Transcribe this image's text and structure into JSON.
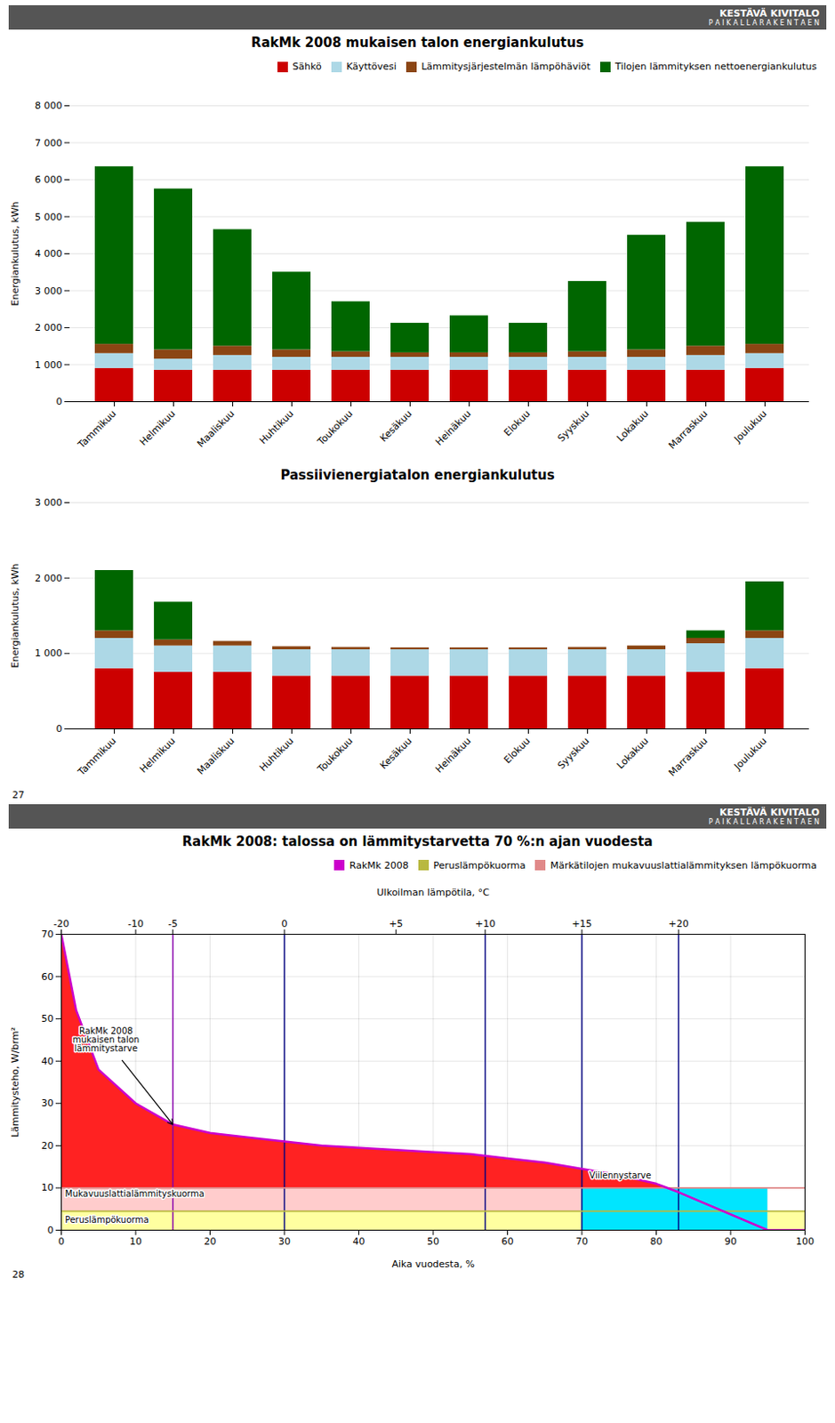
{
  "chart_data": [
    {
      "type": "bar",
      "stacked": true,
      "title": "RakMk 2008 mukaisen talon energiankulutus",
      "y_label": "Energiankulutus, kWh",
      "categories": [
        "Tammikuu",
        "Helmikuu",
        "Maaliskuu",
        "Huhtikuu",
        "Toukokuu",
        "Kesäkuu",
        "Heinäkuu",
        "Elokuu",
        "Syyskuu",
        "Lokakuu",
        "Marraskuu",
        "Joulukuu"
      ],
      "series": [
        {
          "name": "Sähkö",
          "color": "#cc0000",
          "values": [
            900,
            850,
            850,
            850,
            850,
            850,
            850,
            850,
            850,
            850,
            850,
            900
          ]
        },
        {
          "name": "Käyttövesi",
          "color": "#add8e6",
          "values": [
            400,
            300,
            400,
            350,
            350,
            350,
            350,
            350,
            350,
            350,
            400,
            400
          ]
        },
        {
          "name": "Lämmitysjärjestelmän lämpöhäviöt",
          "color": "#8B4513",
          "values": [
            250,
            250,
            250,
            200,
            150,
            120,
            120,
            120,
            150,
            200,
            250,
            250
          ]
        },
        {
          "name": "Tilojen lämmityksen nettoenergiankulutus",
          "color": "#006600",
          "values": [
            4800,
            4350,
            3150,
            2100,
            1350,
            800,
            1000,
            800,
            1900,
            3100,
            3350,
            4800
          ]
        }
      ],
      "ylim": [
        0,
        8000
      ],
      "yticks": [
        0,
        {
          "value": 1000,
          "label": "1 000"
        },
        {
          "value": 2000,
          "label": "2 000"
        },
        {
          "value": 3000,
          "label": "3 000"
        },
        {
          "value": 4000,
          "label": "4 000"
        },
        {
          "value": 5000,
          "label": "5 000"
        },
        {
          "value": 6000,
          "label": "6 000"
        },
        {
          "value": 7000,
          "label": "7 000"
        },
        {
          "value": 8000,
          "label": "8 000"
        }
      ],
      "grid": "y",
      "legend": "upper right",
      "annotations": [
        "KESTÄVÄ KIVITALO",
        "P A I K A L L A R A K E N T A E N"
      ]
    },
    {
      "type": "bar",
      "stacked": true,
      "title": "Passiivienergiatalon energiankulutus",
      "y_label": "Energiankulutus, kWh",
      "categories": [
        "Tammikuu",
        "Helmikuu",
        "Maaliskuu",
        "Huhtikuu",
        "Toukokuu",
        "Kesäkuu",
        "Heinäkuu",
        "Elokuu",
        "Syyskuu",
        "Lokakuu",
        "Marraskuu",
        "Joulukuu"
      ],
      "series": [
        {
          "color": "#cc0000",
          "values": [
            800,
            750,
            750,
            700,
            700,
            700,
            700,
            700,
            700,
            700,
            750,
            800
          ]
        },
        {
          "color": "#add8e6",
          "values": [
            400,
            350,
            350,
            350,
            350,
            350,
            350,
            350,
            350,
            350,
            380,
            400
          ]
        },
        {
          "color": "#8B4513",
          "values": [
            100,
            80,
            60,
            40,
            30,
            25,
            25,
            25,
            30,
            50,
            70,
            100
          ]
        },
        {
          "color": "#006600",
          "values": [
            800,
            500,
            0,
            0,
            0,
            0,
            0,
            0,
            0,
            0,
            100,
            650
          ]
        }
      ],
      "ylim": [
        0,
        3000
      ],
      "yticks": [
        0,
        {
          "value": 1000,
          "label": "1 000"
        },
        {
          "value": 2000,
          "label": "2 000"
        },
        {
          "value": 3000,
          "label": "3 000"
        }
      ],
      "grid": "y",
      "annotations": [
        "27"
      ]
    },
    {
      "type": "line",
      "title": "RakMk 2008: talossa on lämmitystarvetta 70 %:n ajan vuodesta",
      "x_label": "Aika vuodesta, %",
      "y_label": "Lämmitysteho, W/brm²",
      "x2_label": "Ulkoilman lämpötila, °C",
      "xlim": [
        0,
        100
      ],
      "xticks": [
        0,
        10,
        20,
        30,
        40,
        50,
        60,
        70,
        80,
        90,
        100
      ],
      "ylim": [
        0,
        70
      ],
      "yticks": [
        0,
        10,
        20,
        30,
        40,
        50,
        60,
        70
      ],
      "x2lim": [
        0,
        100
      ],
      "x2ticks": [
        {
          "value": 0,
          "label": "-20"
        },
        {
          "value": 10,
          "label": "-10"
        },
        {
          "value": 15,
          "label": "-5"
        },
        {
          "value": 30,
          "label": "0"
        },
        {
          "value": 45,
          "label": "+5"
        },
        {
          "value": 57,
          "label": "+10"
        },
        {
          "value": 70,
          "label": "+15"
        },
        {
          "value": 83,
          "label": "+20"
        }
      ],
      "grid": true,
      "legend": "upper right",
      "series": [
        {
          "type": "area",
          "color": "#ff2222",
          "x": [
            0,
            2,
            5,
            10,
            15,
            20,
            25,
            30,
            35,
            40,
            45,
            50,
            55,
            60,
            65,
            70,
            75,
            80,
            83
          ],
          "values": [
            70,
            52,
            38,
            30,
            25,
            23,
            22,
            21,
            20,
            19.5,
            19,
            18.5,
            18,
            17,
            16,
            14.5,
            13,
            11,
            9
          ],
          "base": 10
        },
        {
          "type": "area",
          "color": "#ffffa0",
          "x": [
            0,
            100
          ],
          "values": [
            4.5,
            4.5
          ],
          "base": 0
        },
        {
          "type": "area",
          "color": "#ffcccc",
          "x": [
            0,
            95
          ],
          "values": [
            10.0,
            10.0
          ],
          "base": 4.5
        },
        {
          "type": "area",
          "color": "#00e5ff",
          "x": [
            70,
            95
          ],
          "values": [
            10.0,
            10.0
          ],
          "base": 0
        },
        {
          "type": "line",
          "name": "RakMk 2008",
          "color": "#cc00cc",
          "x": [
            0,
            2,
            5,
            10,
            15,
            20,
            25,
            30,
            35,
            40,
            45,
            50,
            55,
            60,
            65,
            70,
            75,
            80,
            83,
            95,
            100
          ],
          "values": [
            70,
            52,
            38,
            30,
            25,
            23,
            22,
            21,
            20,
            19.5,
            19,
            18.5,
            18,
            17,
            16,
            14.5,
            13,
            11,
            9,
            0,
            0
          ]
        },
        {
          "type": "line",
          "name": "Peruslämpökuorma",
          "color": "#b8b840",
          "x": [
            0,
            100
          ],
          "values": [
            4.5,
            4.5
          ]
        },
        {
          "type": "line",
          "name": "Märkätilojen mukavuuslattialämmityksen lämpökuorma",
          "color": "#e08888",
          "x": [
            0,
            100
          ],
          "values": [
            10.0,
            10.0
          ]
        }
      ],
      "vertical_lines": [
        {
          "x": [
            30,
            57,
            70,
            83
          ],
          "color": "#000080"
        },
        {
          "x": [
            15
          ],
          "color": "#8800aa"
        }
      ],
      "annotations": [
        {
          "text": "RakMk 2008\nmukaisen talon\nlämmitystarve",
          "x": 6,
          "y": 45,
          "arrow_x": 15,
          "arrow_y": 25
        },
        {
          "text": "Viilennystarve",
          "x": 71,
          "y": 13
        },
        {
          "text": "Mukavuuslattialämmityskuorma",
          "x": 0.5,
          "y": 8.5
        },
        {
          "text": "Peruslämpökuorma",
          "x": 0.5,
          "y": 2.5
        },
        "KESTÄVÄ KIVITALO",
        "P A I K A L L A R A K E N T A E N",
        "28"
      ]
    }
  ]
}
